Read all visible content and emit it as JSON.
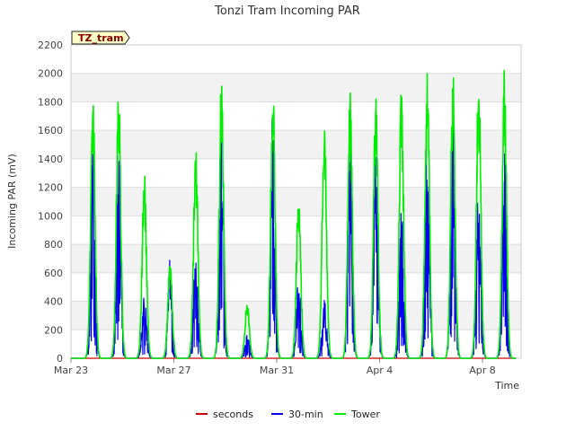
{
  "chart_data": {
    "type": "line",
    "title": "Tonzi Tram Incoming PAR",
    "xlabel": "Time",
    "ylabel": "Incoming PAR (mV)",
    "badge": "TZ_tram",
    "ylim": [
      0,
      2200
    ],
    "yticks": [
      0,
      200,
      400,
      600,
      800,
      1000,
      1200,
      1400,
      1600,
      1800,
      2000,
      2200
    ],
    "xlim": [
      0,
      17.5
    ],
    "xtick_labels": [
      {
        "x": 0,
        "label": "Mar 23"
      },
      {
        "x": 4,
        "label": "Mar 27"
      },
      {
        "x": 8,
        "label": "Mar 31"
      },
      {
        "x": 12,
        "label": "Apr 4"
      },
      {
        "x": 16,
        "label": "Apr 8"
      }
    ],
    "grid": true,
    "legend_position": "bottom",
    "series": [
      {
        "name": "seconds",
        "color": "#cc0000",
        "x": [
          0,
          17.3
        ],
        "y": [
          0,
          0
        ]
      },
      {
        "name": "30-min",
        "color": "#0000ee",
        "peaks": [
          {
            "day": 0.85,
            "peak": 1620
          },
          {
            "day": 1.85,
            "peak": 1660
          },
          {
            "day": 2.85,
            "peak": 500
          },
          {
            "day": 3.85,
            "peak": 730
          },
          {
            "day": 4.85,
            "peak": 870
          },
          {
            "day": 5.85,
            "peak": 1780
          },
          {
            "day": 6.85,
            "peak": 180
          },
          {
            "day": 7.85,
            "peak": 1800
          },
          {
            "day": 8.85,
            "peak": 600
          },
          {
            "day": 9.85,
            "peak": 450
          },
          {
            "day": 10.85,
            "peak": 1840
          },
          {
            "day": 11.85,
            "peak": 1550
          },
          {
            "day": 12.85,
            "peak": 1080
          },
          {
            "day": 13.85,
            "peak": 1770
          },
          {
            "day": 14.85,
            "peak": 1750
          },
          {
            "day": 15.85,
            "peak": 1270
          },
          {
            "day": 16.85,
            "peak": 1700
          }
        ]
      },
      {
        "name": "Tower",
        "color": "#00ee00",
        "peaks": [
          {
            "day": 0.85,
            "peak": 1890
          },
          {
            "day": 1.85,
            "peak": 1910
          },
          {
            "day": 2.85,
            "peak": 1320
          },
          {
            "day": 3.85,
            "peak": 680
          },
          {
            "day": 4.85,
            "peak": 1500
          },
          {
            "day": 5.85,
            "peak": 2000
          },
          {
            "day": 6.85,
            "peak": 400
          },
          {
            "day": 7.85,
            "peak": 1950
          },
          {
            "day": 8.85,
            "peak": 1190
          },
          {
            "day": 9.85,
            "peak": 1700
          },
          {
            "day": 10.85,
            "peak": 1900
          },
          {
            "day": 11.85,
            "peak": 1900
          },
          {
            "day": 12.85,
            "peak": 1920
          },
          {
            "day": 13.85,
            "peak": 2060
          },
          {
            "day": 14.85,
            "peak": 2060
          },
          {
            "day": 15.85,
            "peak": 2050
          },
          {
            "day": 16.85,
            "peak": 2040
          }
        ]
      }
    ]
  }
}
